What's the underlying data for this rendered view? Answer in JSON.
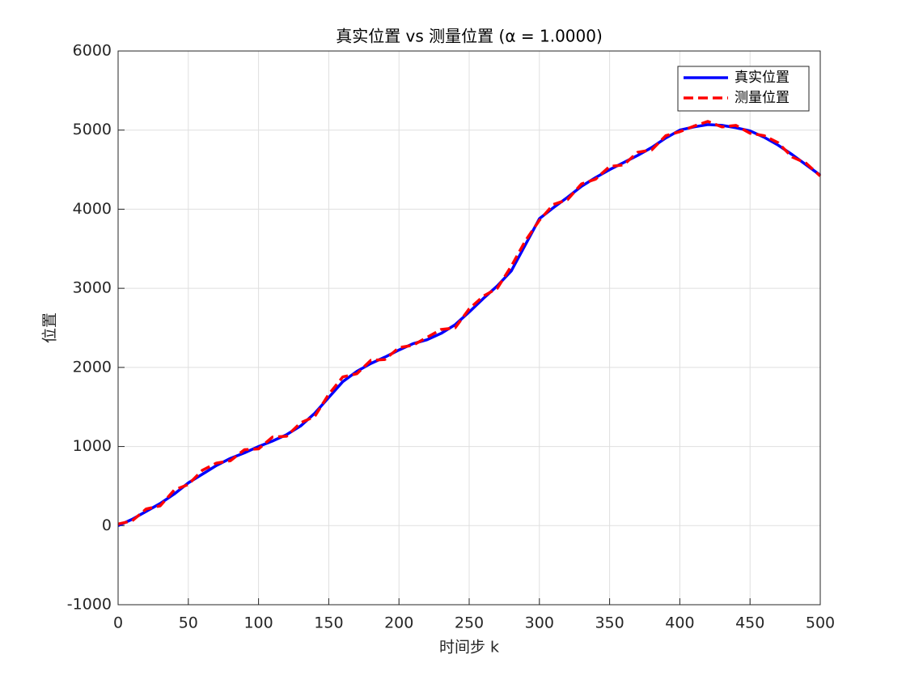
{
  "chart_data": {
    "type": "line",
    "title": "真实位置 vs 测量位置 (α = 1.0000)",
    "x_label": "时间步 k",
    "y_label": "位置",
    "x": [
      0,
      10,
      20,
      30,
      40,
      50,
      60,
      70,
      80,
      90,
      100,
      110,
      120,
      130,
      140,
      150,
      160,
      170,
      180,
      190,
      200,
      210,
      220,
      230,
      240,
      250,
      260,
      270,
      280,
      290,
      300,
      310,
      320,
      330,
      340,
      350,
      360,
      370,
      380,
      390,
      400,
      410,
      420,
      430,
      440,
      450,
      460,
      470,
      480,
      490,
      500
    ],
    "series": [
      {
        "name": "真实位置",
        "color": "#0000ff",
        "style": "solid",
        "values": [
          0,
          80,
          180,
          280,
          400,
          540,
          650,
          760,
          850,
          920,
          1000,
          1070,
          1150,
          1260,
          1420,
          1620,
          1820,
          1950,
          2050,
          2130,
          2220,
          2300,
          2350,
          2430,
          2540,
          2700,
          2870,
          3030,
          3220,
          3550,
          3880,
          4020,
          4150,
          4290,
          4400,
          4500,
          4590,
          4680,
          4780,
          4900,
          5000,
          5040,
          5070,
          5060,
          5030,
          4990,
          4910,
          4810,
          4690,
          4560,
          4430
        ]
      },
      {
        "name": "测量位置",
        "color": "#ff0000",
        "style": "dashed",
        "values": [
          20,
          60,
          210,
          250,
          450,
          520,
          700,
          790,
          820,
          960,
          970,
          1120,
          1130,
          1300,
          1380,
          1660,
          1880,
          1920,
          2090,
          2100,
          2250,
          2280,
          2380,
          2480,
          2500,
          2740,
          2900,
          3000,
          3280,
          3600,
          3860,
          4060,
          4120,
          4320,
          4380,
          4540,
          4560,
          4720,
          4750,
          4930,
          4980,
          5050,
          5110,
          5040,
          5060,
          4960,
          4930,
          4840,
          4660,
          4580,
          4420
        ]
      }
    ],
    "xlim": [
      0,
      500
    ],
    "xticks": [
      0,
      50,
      100,
      150,
      200,
      250,
      300,
      350,
      400,
      450,
      500
    ],
    "ylim": [
      -1000,
      6000
    ],
    "yticks": [
      -1000,
      0,
      1000,
      2000,
      3000,
      4000,
      5000,
      6000
    ],
    "grid": true,
    "legend": "top-right"
  }
}
